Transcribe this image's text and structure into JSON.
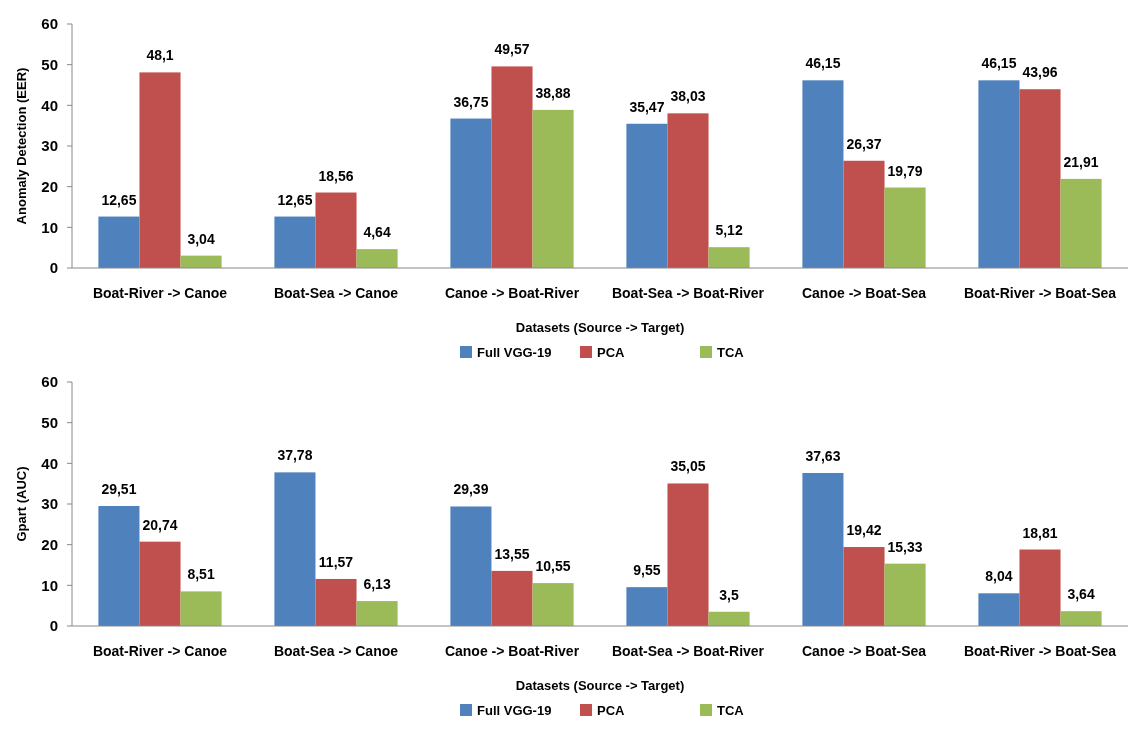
{
  "chart_data": [
    {
      "type": "bar",
      "ylabel": "Anomaly Detection (EER)",
      "xlabel": "Datasets (Source -> Target)",
      "categories": [
        "Boat-River -> Canoe",
        "Boat-Sea -> Canoe",
        "Canoe -> Boat-River",
        "Boat-Sea -> Boat-River",
        "Canoe -> Boat-Sea",
        "Boat-River -> Boat-Sea"
      ],
      "ylim": [
        0,
        60
      ],
      "yticks": [
        0,
        10,
        20,
        30,
        40,
        50,
        60
      ],
      "legend": "bottom",
      "grid": false,
      "series": [
        {
          "name": "Full VGG-19",
          "color": "#4f81bd",
          "values": [
            12.65,
            12.65,
            36.75,
            35.47,
            46.15,
            46.15
          ],
          "value_labels": [
            "12,65",
            "12,65",
            "36,75",
            "35,47",
            "46,15",
            "46,15"
          ]
        },
        {
          "name": "PCA",
          "color": "#c0504d",
          "values": [
            48.1,
            18.56,
            49.57,
            38.03,
            26.37,
            43.96
          ],
          "value_labels": [
            "48,1",
            "18,56",
            "49,57",
            "38,03",
            "26,37",
            "43,96"
          ]
        },
        {
          "name": "TCA",
          "color": "#9bbb59",
          "values": [
            3.04,
            4.64,
            38.88,
            5.12,
            19.79,
            21.91
          ],
          "value_labels": [
            "3,04",
            "4,64",
            "38,88",
            "5,12",
            "19,79",
            "21,91"
          ]
        }
      ]
    },
    {
      "type": "bar",
      "ylabel": "Gpart (AUC)",
      "xlabel": "Datasets (Source -> Target)",
      "categories": [
        "Boat-River -> Canoe",
        "Boat-Sea -> Canoe",
        "Canoe -> Boat-River",
        "Boat-Sea -> Boat-River",
        "Canoe -> Boat-Sea",
        "Boat-River -> Boat-Sea"
      ],
      "ylim": [
        0,
        60
      ],
      "yticks": [
        0,
        10,
        20,
        30,
        40,
        50,
        60
      ],
      "legend": "bottom",
      "grid": false,
      "series": [
        {
          "name": "Full VGG-19",
          "color": "#4f81bd",
          "values": [
            29.51,
            37.78,
            29.39,
            9.55,
            37.63,
            8.04
          ],
          "value_labels": [
            "29,51",
            "37,78",
            "29,39",
            "9,55",
            "37,63",
            "8,04"
          ]
        },
        {
          "name": "PCA",
          "color": "#c0504d",
          "values": [
            20.74,
            11.57,
            13.55,
            35.05,
            19.42,
            18.81
          ],
          "value_labels": [
            "20,74",
            "11,57",
            "13,55",
            "35,05",
            "19,42",
            "18,81"
          ]
        },
        {
          "name": "TCA",
          "color": "#9bbb59",
          "values": [
            8.51,
            6.13,
            10.55,
            3.5,
            15.33,
            3.64
          ],
          "value_labels": [
            "8,51",
            "6,13",
            "10,55",
            "3,5",
            "15,33",
            "3,64"
          ]
        }
      ]
    }
  ]
}
